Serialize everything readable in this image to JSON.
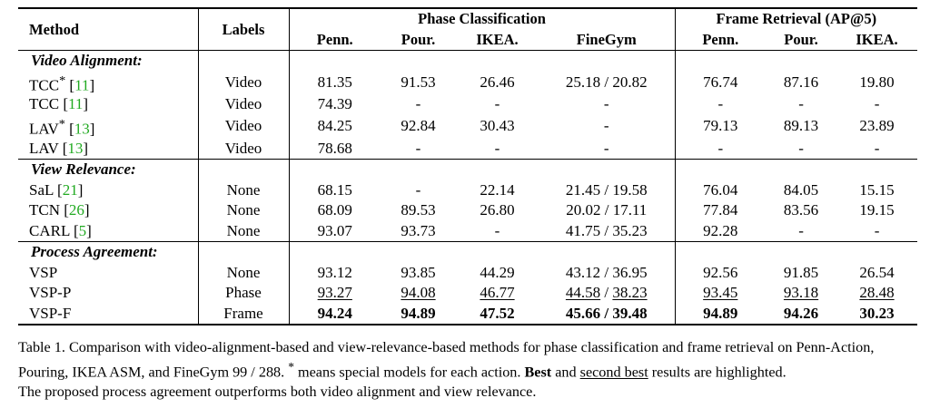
{
  "table": {
    "headers": {
      "method": "Method",
      "labels": "Labels",
      "phase_group": "Phase Classification",
      "frame_group": "Frame Retrieval (AP@5)",
      "phase_cols": [
        "Penn.",
        "Pour.",
        "IKEA.",
        "FineGym"
      ],
      "frame_cols": [
        "Penn.",
        "Pour.",
        "IKEA."
      ]
    },
    "sections": [
      {
        "title": "Video Alignment:",
        "rows": [
          {
            "name": "TCC",
            "sup": "*",
            "cite": "11",
            "label": "Video",
            "values": [
              "81.35",
              "91.53",
              "26.46",
              "25.18 / 20.82",
              "76.74",
              "87.16",
              "19.80"
            ]
          },
          {
            "name": "TCC",
            "sup": "",
            "cite": "11",
            "label": "Video",
            "values": [
              "74.39",
              "-",
              "-",
              "-",
              "-",
              "-",
              "-"
            ]
          },
          {
            "name": "LAV",
            "sup": "*",
            "cite": "13",
            "label": "Video",
            "values": [
              "84.25",
              "92.84",
              "30.43",
              "-",
              "79.13",
              "89.13",
              "23.89"
            ]
          },
          {
            "name": "LAV",
            "sup": "",
            "cite": "13",
            "label": "Video",
            "values": [
              "78.68",
              "-",
              "-",
              "-",
              "-",
              "-",
              "-"
            ]
          }
        ]
      },
      {
        "title": "View Relevance:",
        "rows": [
          {
            "name": "SaL",
            "sup": "",
            "cite": "21",
            "label": "None",
            "values": [
              "68.15",
              "-",
              "22.14",
              "21.45 / 19.58",
              "76.04",
              "84.05",
              "15.15"
            ]
          },
          {
            "name": "TCN",
            "sup": "",
            "cite": "26",
            "label": "None",
            "values": [
              "68.09",
              "89.53",
              "26.80",
              "20.02 / 17.11",
              "77.84",
              "83.56",
              "19.15"
            ]
          },
          {
            "name": "CARL",
            "sup": "",
            "cite": "5",
            "label": "None",
            "values": [
              "93.07",
              "93.73",
              "-",
              "41.75 / 35.23",
              "92.28",
              "-",
              "-"
            ]
          }
        ]
      },
      {
        "title": "Process Agreement:",
        "rows": [
          {
            "name": "VSP",
            "sup": "",
            "cite": "",
            "label": "None",
            "values": [
              "93.12",
              "93.85",
              "44.29",
              "43.12 / 36.95",
              "92.56",
              "91.85",
              "26.54"
            ]
          },
          {
            "name": "VSP-P",
            "sup": "",
            "cite": "",
            "label": "Phase",
            "values": [
              "93.27",
              "94.08",
              "46.77",
              "44.58 / 38.23",
              "93.45",
              "93.18",
              "28.48"
            ]
          },
          {
            "name": "VSP-F",
            "sup": "",
            "cite": "",
            "label": "Frame",
            "values": [
              "94.24",
              "94.89",
              "47.52",
              "45.66 / 39.48",
              "94.89",
              "94.26",
              "30.23"
            ]
          }
        ]
      }
    ],
    "second_best_row": "VSP-P",
    "best_row": "VSP-F"
  },
  "caption": {
    "prefix": "Table 1. Comparison with video-alignment-based and view-relevance-based methods for phase classification and frame retrieval on Penn-Action, Pouring, IKEA ASM, and FineGym 99 / 288.",
    "star": "*",
    "star_text": "means special models for each action.",
    "best": "Best",
    "and": "and",
    "second_best": "second best",
    "highlight_text": "results are highlighted.",
    "line3": "The proposed process agreement outperforms both video alignment and view relevance."
  }
}
